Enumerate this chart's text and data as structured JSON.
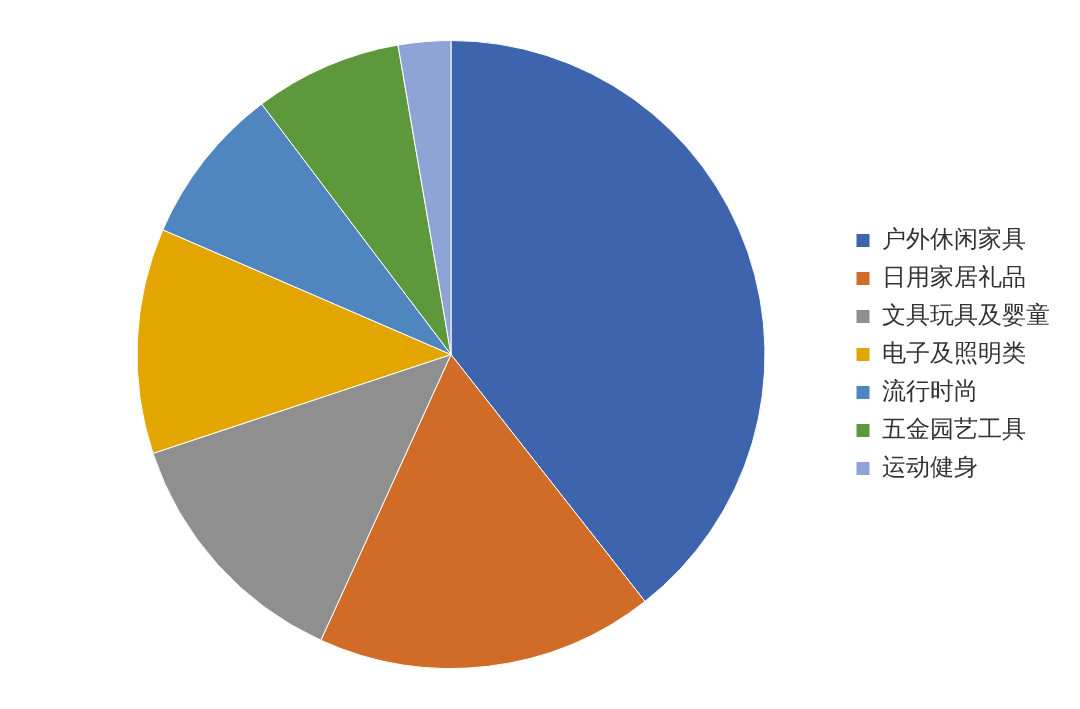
{
  "chart_data": {
    "type": "pie",
    "categories": [
      "户外休闲家具",
      "日用家居礼品",
      "文具玩具及婴童",
      "电子及照明类",
      "流行时尚",
      "五金园艺工具",
      "运动健身"
    ],
    "values": [
      39.4,
      17.4,
      13.1,
      11.6,
      8.2,
      7.6,
      2.7
    ],
    "colors": [
      "#3d64ad",
      "#d06b28",
      "#8f8f8f",
      "#e3a600",
      "#4f86bf",
      "#5e983c",
      "#8fa4d6"
    ],
    "legend": "right"
  }
}
